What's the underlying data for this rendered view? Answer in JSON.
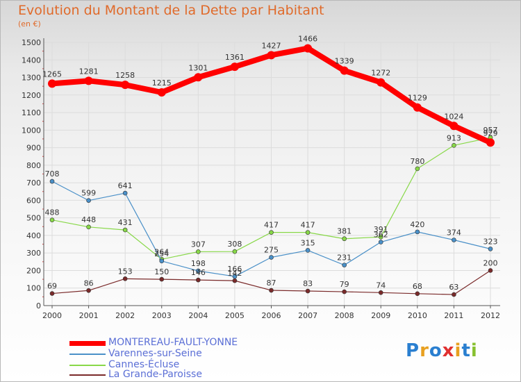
{
  "header": {
    "title": "Evolution du Montant de la Dette par Habitant",
    "unit": "(en €)"
  },
  "logo": {
    "text": "Proxiti"
  },
  "chart_data": {
    "type": "line",
    "title": "Evolution du Montant de la Dette par Habitant",
    "subtitle": "(en €)",
    "xlabel": "",
    "ylabel": "",
    "ylim": [
      0,
      1500
    ],
    "yticks": [
      0,
      100,
      200,
      300,
      400,
      500,
      600,
      700,
      800,
      900,
      1000,
      1100,
      1200,
      1300,
      1400,
      1500
    ],
    "grid": true,
    "legend": "bottom-left",
    "x": [
      "2000",
      "2001",
      "2002",
      "2003",
      "2004",
      "2005",
      "2006",
      "2007",
      "2008",
      "2009",
      "2010",
      "2011",
      "2012"
    ],
    "series": [
      {
        "name": "MONTEREAU-FAULT-YONNE",
        "color": "#ff0000",
        "values": [
          1265,
          1281,
          1258,
          1215,
          1301,
          1361,
          1427,
          1466,
          1339,
          1272,
          1129,
          1024,
          929
        ],
        "labels": [
          "1265",
          "1281",
          "1258",
          "1215",
          "1301",
          "1361",
          "1427",
          "1466",
          "1339",
          "1272",
          "1129",
          "1024",
          "929"
        ]
      },
      {
        "name": "Varennes-sur-Seine",
        "color": "#4a90c8",
        "values": [
          708,
          599,
          641,
          254,
          198,
          166,
          275,
          315,
          231,
          362,
          420,
          374,
          323
        ],
        "labels": [
          "708",
          "599",
          "641",
          "254",
          "198",
          "166",
          "275",
          "315",
          "231",
          "362",
          "420",
          "374",
          "323"
        ]
      },
      {
        "name": "Cannes-Écluse",
        "color": "#88d848",
        "values": [
          488,
          448,
          431,
          264,
          307,
          308,
          417,
          417,
          381,
          391,
          780,
          913,
          957
        ],
        "labels": [
          "488",
          "448",
          "431",
          "264",
          "307",
          "308",
          "417",
          "417",
          "381",
          "391",
          "780",
          "913",
          "957"
        ]
      },
      {
        "name": "La Grande-Paroisse",
        "color": "#7a2a2a",
        "values": [
          69,
          86,
          153,
          150,
          146,
          142,
          87,
          83,
          79,
          74,
          68,
          63,
          200
        ],
        "labels": [
          "69",
          "86",
          "153",
          "150",
          "146",
          "142",
          "87",
          "83",
          "79",
          "74",
          "68",
          "63",
          "200"
        ]
      }
    ]
  }
}
